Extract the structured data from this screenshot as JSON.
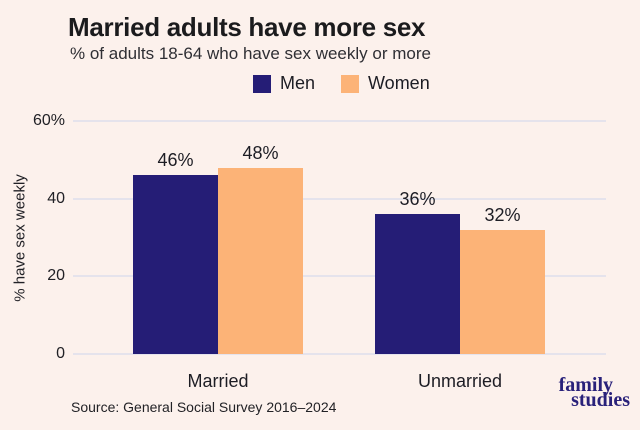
{
  "title": "Married adults have more sex",
  "subtitle": "% of adults 18-64 who have sex weekly or more",
  "source": "Source: General Social Survey 2016–2024",
  "logo": {
    "line1": "family",
    "line2": "studies"
  },
  "colors": {
    "background": "#fcf1ec",
    "men": "#251d76",
    "women": "#fcb377",
    "gridline": "#e5e3ec",
    "text": "#1d1d24",
    "logo": "#29217a"
  },
  "chart_data": {
    "type": "bar",
    "title": "Married adults have more sex",
    "subtitle": "% of adults 18-64 who have sex weekly or more",
    "categories": [
      "Married",
      "Unmarried"
    ],
    "series": [
      {
        "name": "Men",
        "color": "#251d76",
        "values": [
          46,
          36
        ],
        "labels": [
          "46%",
          "36%"
        ]
      },
      {
        "name": "Women",
        "color": "#fcb377",
        "values": [
          48,
          32
        ],
        "labels": [
          "48%",
          "32%"
        ]
      }
    ],
    "ylabel": "% have sex weekly",
    "xlabel": "",
    "ylim": [
      0,
      62
    ],
    "yticks": [
      {
        "value": 0,
        "label": "0"
      },
      {
        "value": 20,
        "label": "20"
      },
      {
        "value": 40,
        "label": "40"
      },
      {
        "value": 60,
        "label": "60%"
      }
    ],
    "grid": true,
    "legend_position": "top",
    "bar_value_labels": true
  }
}
